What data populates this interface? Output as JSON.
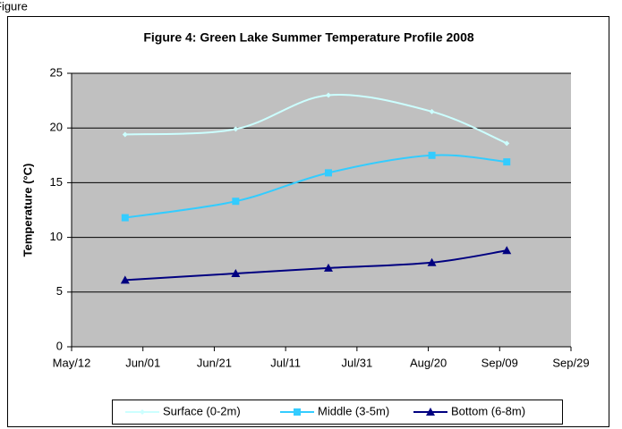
{
  "caption": "Figure",
  "chart_data": {
    "type": "line",
    "title": "Figure 4: Green Lake Summer Temperature Profile 2008",
    "y_label": "Temperature (°C)",
    "x": [
      148,
      179,
      205,
      234,
      255
    ],
    "xlim": [
      133,
      273
    ],
    "xticks": [
      {
        "value": 133,
        "label": "May/12"
      },
      {
        "value": 153,
        "label": "Jun/01"
      },
      {
        "value": 173,
        "label": "Jun/21"
      },
      {
        "value": 193,
        "label": "Jul/11"
      },
      {
        "value": 213,
        "label": "Jul/31"
      },
      {
        "value": 233,
        "label": "Aug/20"
      },
      {
        "value": 253,
        "label": "Sep/09"
      },
      {
        "value": 273,
        "label": "Sep/29"
      }
    ],
    "ylim": [
      0,
      25
    ],
    "yticks": [
      0,
      5,
      10,
      15,
      20,
      25
    ],
    "grid": true,
    "legend": "bottom",
    "series": [
      {
        "name": "Surface (0-2m)",
        "color": "#ccffff",
        "marker": "diamond",
        "values": [
          19.4,
          19.9,
          23.0,
          21.5,
          18.6
        ]
      },
      {
        "name": "Middle (3-5m)",
        "color": "#33ccff",
        "marker": "square",
        "values": [
          11.8,
          13.3,
          15.9,
          17.5,
          16.9
        ]
      },
      {
        "name": "Bottom (6-8m)",
        "color": "#000080",
        "marker": "triangle",
        "values": [
          6.1,
          6.7,
          7.2,
          7.7,
          8.8
        ]
      }
    ]
  }
}
